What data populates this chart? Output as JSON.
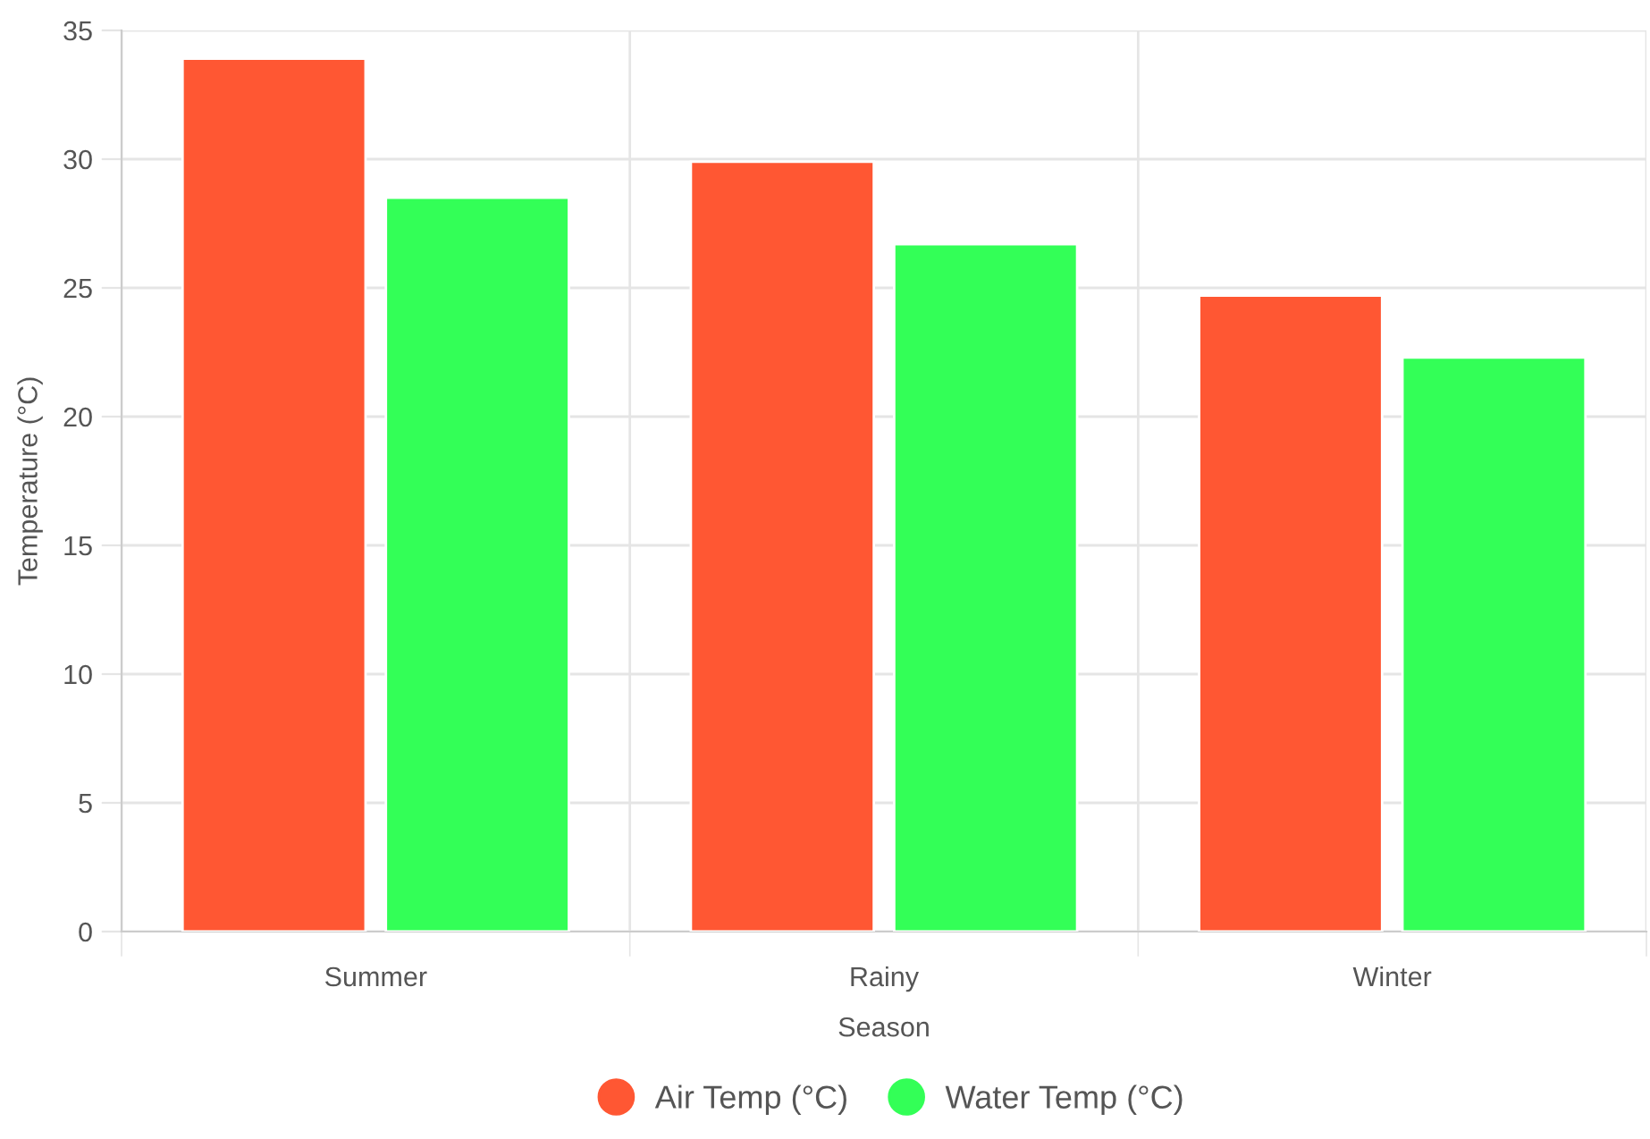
{
  "chart_data": {
    "type": "bar",
    "xlabel": "Season",
    "ylabel": "Temperature (°C)",
    "categories": [
      "Summer",
      "Rainy",
      "Winter"
    ],
    "series": [
      {
        "name": "Air Temp (°C)",
        "color": "#ff5733",
        "values": [
          33.9,
          29.9,
          24.7
        ]
      },
      {
        "name": "Water Temp (°C)",
        "color": "#33ff57",
        "values": [
          28.5,
          26.7,
          22.3
        ]
      }
    ],
    "ylim": [
      0,
      35
    ],
    "yticks": [
      0,
      5,
      10,
      15,
      20,
      25,
      30,
      35
    ],
    "grid": true,
    "legend": "bottom",
    "marker": "circle"
  }
}
